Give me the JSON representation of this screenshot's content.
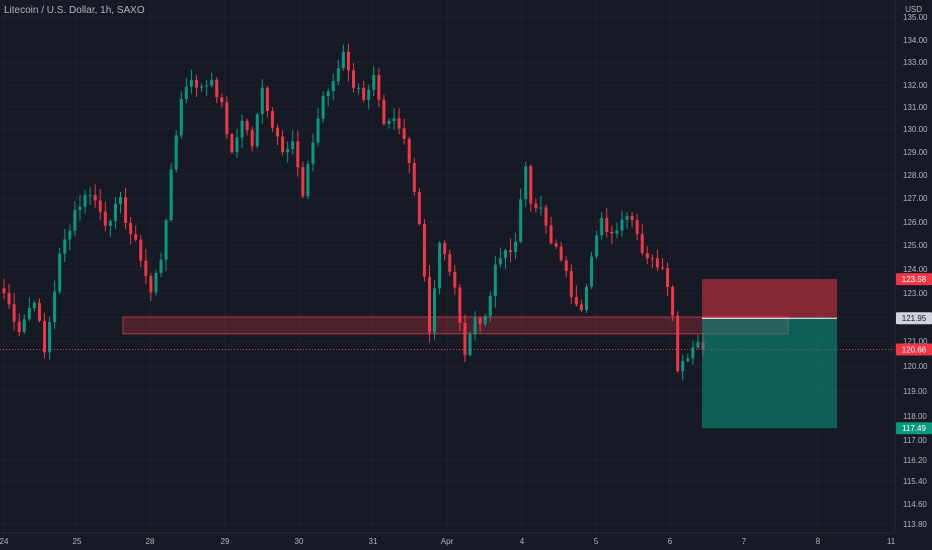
{
  "chart_data": {
    "type": "candlestick",
    "title": "Litecoin / U.S. Dollar, 1h, SAXO",
    "currency": "USD",
    "y_ticks": [
      113.8,
      114.6,
      115.4,
      116.2,
      117.0,
      118.0,
      119.0,
      120.0,
      121.0,
      122.0,
      123.0,
      124.0,
      125.0,
      126.0,
      127.0,
      128.0,
      129.0,
      130.0,
      131.0,
      132.0,
      133.0,
      134.0,
      135.0
    ],
    "y_tick_labels": [
      "113.80",
      "114.60",
      "115.40",
      "116.20",
      "117.00",
      "118.00",
      "119.00",
      "120.00",
      "121.00",
      "122.00",
      "123.00",
      "124.00",
      "125.00",
      "126.00",
      "127.00",
      "128.00",
      "129.00",
      "130.00",
      "131.00",
      "132.00",
      "133.00",
      "134.00",
      "135.00"
    ],
    "x_labels": [
      "24",
      "25",
      "28",
      "29",
      "30",
      "31",
      "Apr",
      "4",
      "5",
      "6",
      "7",
      "8",
      "11"
    ],
    "price_markers": [
      {
        "label": "123.58",
        "value": 123.58,
        "color": "#f23645"
      },
      {
        "label": "121.95",
        "value": 121.95,
        "color": "#d1d4dc"
      },
      {
        "label": "120.66",
        "value": 120.66,
        "color": "#f23645"
      },
      {
        "label": "117.49",
        "value": 117.49,
        "color": "#089981"
      }
    ],
    "last_price": 120.66,
    "zone": {
      "low": 121.3,
      "high": 122.0
    },
    "position": {
      "entry": 121.95,
      "stop": 123.58,
      "target": 117.49
    },
    "anchors": [
      [
        0,
        123.0
      ],
      [
        3,
        121.5
      ],
      [
        6,
        122.8
      ],
      [
        8,
        120.5
      ],
      [
        11,
        124.5
      ],
      [
        14,
        126.5
      ],
      [
        17,
        127.3
      ],
      [
        20,
        126.0
      ],
      [
        23,
        126.8
      ],
      [
        25,
        125.5
      ],
      [
        27,
        124.5
      ],
      [
        29,
        123.0
      ],
      [
        31,
        124.5
      ],
      [
        33,
        128.0
      ],
      [
        35,
        131.5
      ],
      [
        37,
        132.3
      ],
      [
        39,
        131.8
      ],
      [
        41,
        132.3
      ],
      [
        43,
        131.0
      ],
      [
        45,
        128.8
      ],
      [
        47,
        130.5
      ],
      [
        49,
        129.3
      ],
      [
        51,
        131.8
      ],
      [
        53,
        130.2
      ],
      [
        55,
        129.2
      ],
      [
        57,
        129.5
      ],
      [
        59,
        127.0
      ],
      [
        61,
        129.5
      ],
      [
        63,
        131.5
      ],
      [
        65,
        132.0
      ],
      [
        67,
        133.5
      ],
      [
        69,
        132.0
      ],
      [
        71,
        131.5
      ],
      [
        73,
        132.3
      ],
      [
        75,
        130.0
      ],
      [
        77,
        130.3
      ],
      [
        79,
        129.5
      ],
      [
        81,
        127.5
      ],
      [
        82,
        126.0
      ],
      [
        84,
        121.5
      ],
      [
        86,
        125.0
      ],
      [
        88,
        124.0
      ],
      [
        90,
        122.0
      ],
      [
        91,
        120.5
      ],
      [
        93,
        122.0
      ],
      [
        95,
        121.8
      ],
      [
        97,
        124.0
      ],
      [
        99,
        124.8
      ],
      [
        101,
        125.0
      ],
      [
        103,
        128.5
      ],
      [
        104,
        127.0
      ],
      [
        106,
        126.5
      ],
      [
        108,
        125.0
      ],
      [
        110,
        124.5
      ],
      [
        112,
        123.0
      ],
      [
        114,
        122.5
      ],
      [
        116,
        124.5
      ],
      [
        118,
        126.0
      ],
      [
        120,
        125.5
      ],
      [
        122,
        126.2
      ],
      [
        124,
        126.3
      ],
      [
        126,
        124.8
      ],
      [
        128,
        124.3
      ],
      [
        130,
        124.2
      ],
      [
        131,
        123.5
      ],
      [
        132,
        122.0
      ],
      [
        133,
        120.0
      ],
      [
        135,
        120.5
      ],
      [
        137,
        121.0
      ],
      [
        138,
        120.9
      ]
    ]
  }
}
